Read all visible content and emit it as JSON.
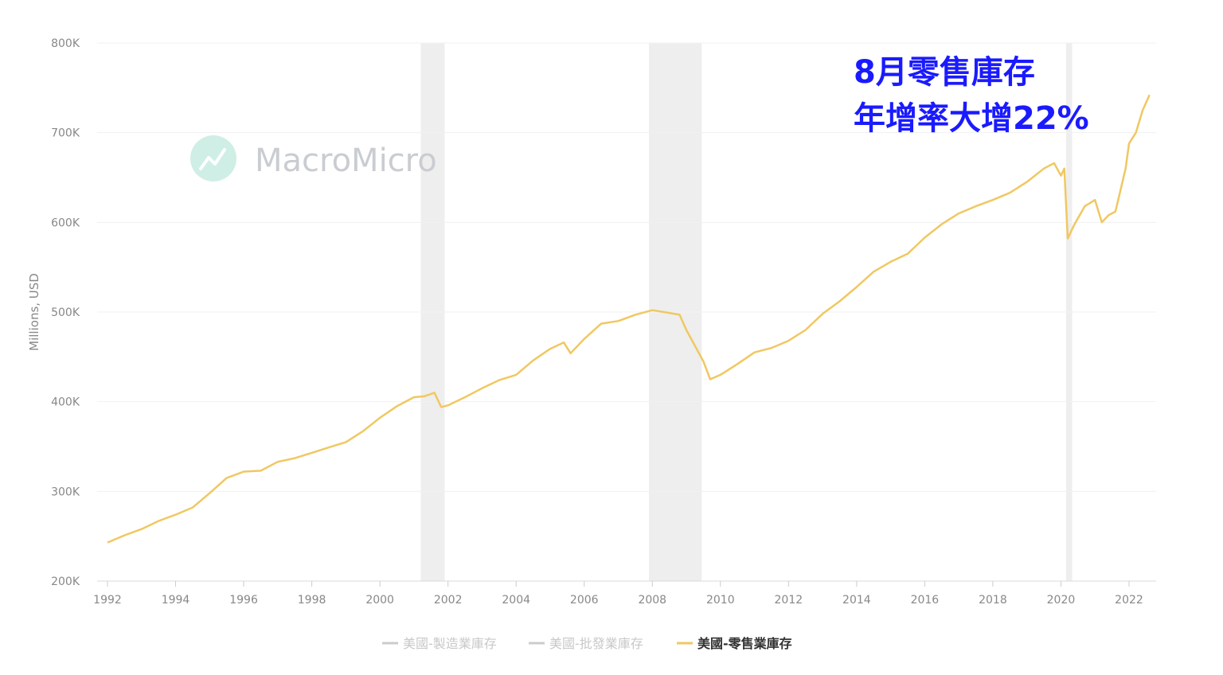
{
  "chart_data": {
    "type": "line",
    "ylabel": "Millions, USD",
    "ylim": [
      200000,
      800000
    ],
    "y_ticks": [
      {
        "value": 200000,
        "label": "200K"
      },
      {
        "value": 300000,
        "label": "300K"
      },
      {
        "value": 400000,
        "label": "400K"
      },
      {
        "value": 500000,
        "label": "500K"
      },
      {
        "value": 600000,
        "label": "600K"
      },
      {
        "value": 700000,
        "label": "700K"
      },
      {
        "value": 800000,
        "label": "800K"
      }
    ],
    "xlim": [
      1992,
      2022.8
    ],
    "x_ticks": [
      {
        "value": 1992,
        "label": "1992"
      },
      {
        "value": 1994,
        "label": "1994"
      },
      {
        "value": 1996,
        "label": "1996"
      },
      {
        "value": 1998,
        "label": "1998"
      },
      {
        "value": 2000,
        "label": "2000"
      },
      {
        "value": 2002,
        "label": "2002"
      },
      {
        "value": 2004,
        "label": "2004"
      },
      {
        "value": 2006,
        "label": "2006"
      },
      {
        "value": 2008,
        "label": "2008"
      },
      {
        "value": 2010,
        "label": "2010"
      },
      {
        "value": 2012,
        "label": "2012"
      },
      {
        "value": 2014,
        "label": "2014"
      },
      {
        "value": 2016,
        "label": "2016"
      },
      {
        "value": 2018,
        "label": "2018"
      },
      {
        "value": 2020,
        "label": "2020"
      },
      {
        "value": 2022,
        "label": "2022"
      }
    ],
    "grid": true,
    "legend_position": "bottom-center",
    "recession_bands": [
      {
        "start": 2001.2,
        "end": 2001.9
      },
      {
        "start": 2007.9,
        "end": 2009.45
      },
      {
        "start": 2020.15,
        "end": 2020.33
      }
    ],
    "series": [
      {
        "name": "美國-製造業庫存",
        "color": "#cccccc",
        "visible": false,
        "x": [],
        "y": []
      },
      {
        "name": "美國-批發業庫存",
        "color": "#cccccc",
        "visible": false,
        "x": [],
        "y": []
      },
      {
        "name": "美國-零售業庫存",
        "color": "#f0c862",
        "visible": true,
        "x": [
          1992.0,
          1992.5,
          1993.0,
          1993.5,
          1994.0,
          1994.5,
          1995.0,
          1995.5,
          1996.0,
          1996.5,
          1997.0,
          1997.5,
          1998.0,
          1998.5,
          1999.0,
          1999.5,
          2000.0,
          2000.5,
          2001.0,
          2001.3,
          2001.6,
          2001.8,
          2002.0,
          2002.5,
          2003.0,
          2003.5,
          2004.0,
          2004.5,
          2005.0,
          2005.4,
          2005.6,
          2006.0,
          2006.5,
          2007.0,
          2007.5,
          2008.0,
          2008.5,
          2008.8,
          2009.0,
          2009.5,
          2009.7,
          2010.0,
          2010.5,
          2011.0,
          2011.5,
          2012.0,
          2012.5,
          2013.0,
          2013.5,
          2014.0,
          2014.5,
          2015.0,
          2015.5,
          2016.0,
          2016.5,
          2017.0,
          2017.5,
          2018.0,
          2018.5,
          2019.0,
          2019.5,
          2019.8,
          2020.0,
          2020.1,
          2020.2,
          2020.4,
          2020.7,
          2021.0,
          2021.2,
          2021.4,
          2021.6,
          2021.9,
          2022.0,
          2022.2,
          2022.4,
          2022.6
        ],
        "y": [
          243000,
          251000,
          258000,
          267000,
          274000,
          282000,
          298000,
          315000,
          322000,
          323000,
          333000,
          337000,
          343000,
          349000,
          355000,
          367000,
          382000,
          395000,
          405000,
          406000,
          410000,
          394000,
          396000,
          405000,
          415000,
          424000,
          430000,
          446000,
          459000,
          466000,
          454000,
          470000,
          487000,
          490000,
          497000,
          502000,
          499000,
          497000,
          480000,
          445000,
          425000,
          430000,
          442000,
          455000,
          460000,
          468000,
          480000,
          498000,
          512000,
          528000,
          545000,
          556000,
          565000,
          583000,
          598000,
          610000,
          618000,
          625000,
          633000,
          645000,
          660000,
          666000,
          652000,
          660000,
          582000,
          598000,
          618000,
          625000,
          600000,
          608000,
          612000,
          660000,
          688000,
          700000,
          725000,
          742000
        ]
      }
    ],
    "annotations": [
      {
        "lines": [
          "8月零售庫存",
          "年增率大增22%"
        ],
        "color": "#1a1aff",
        "position": "top-right"
      }
    ],
    "watermark": "MacroMicro"
  }
}
